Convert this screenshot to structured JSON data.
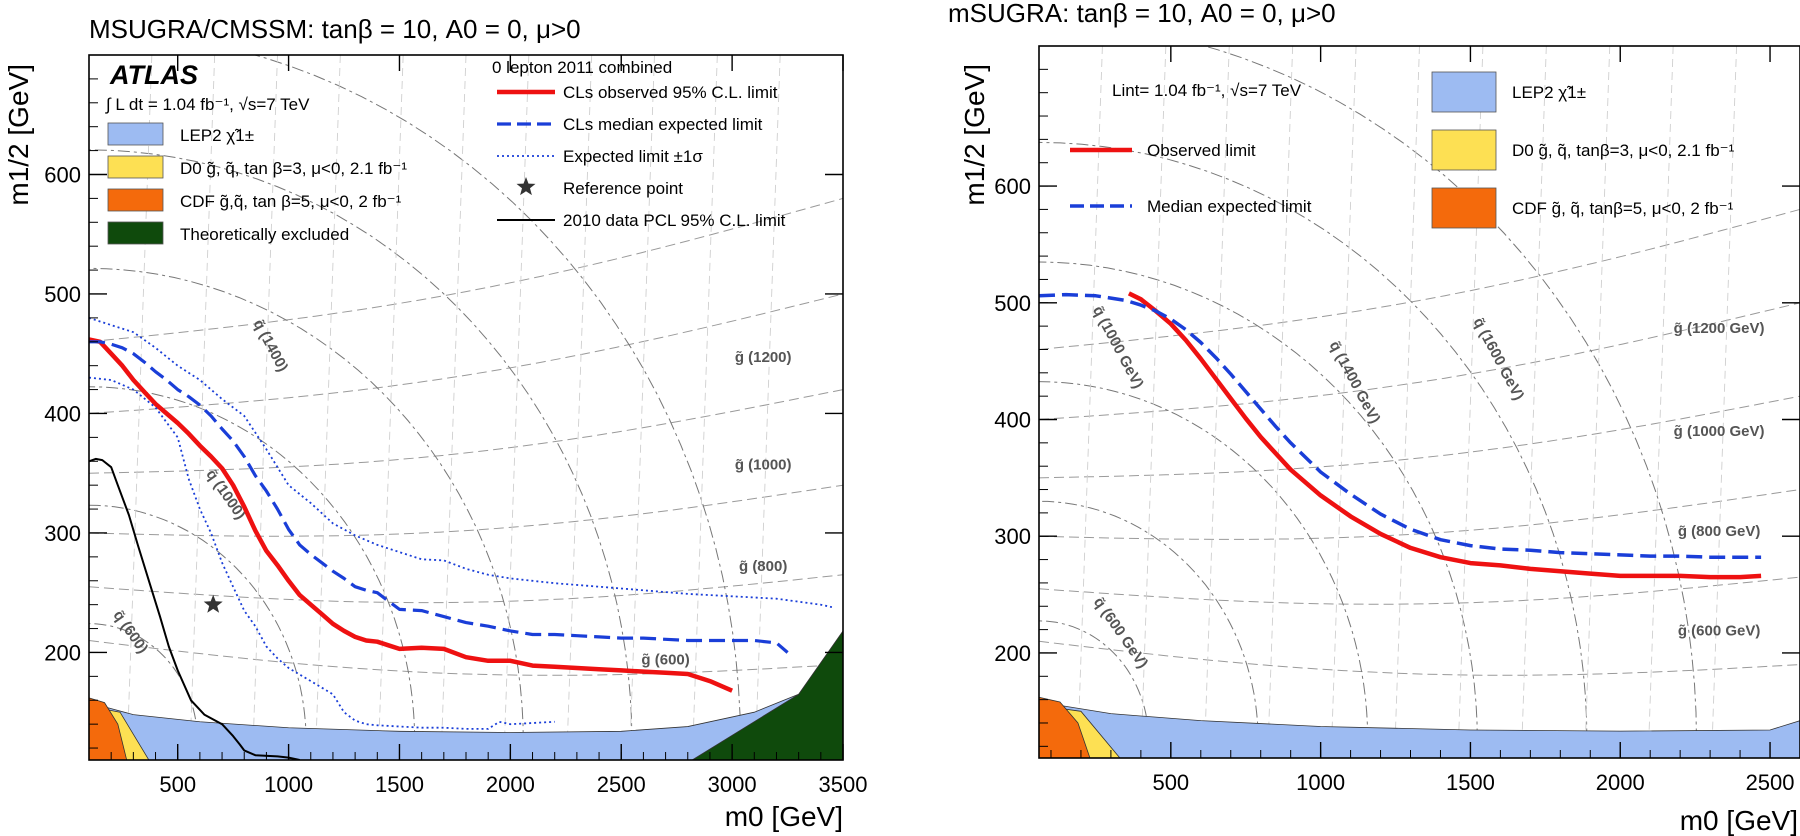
{
  "chart_data": [
    {
      "type": "line",
      "title": "MSUGRA/CMSSM: tanβ = 10, A0 = 0, μ>0",
      "xlabel": "m0 [GeV]",
      "ylabel": "m1/2 [GeV]",
      "xlim": [
        100,
        3500
      ],
      "ylim": [
        110,
        700
      ],
      "xticks": [
        500,
        1000,
        1500,
        2000,
        2500,
        3000,
        3500
      ],
      "yticks": [
        200,
        300,
        400,
        500,
        600
      ],
      "experiment": "ATLAS",
      "lumi_text": "∫ L dt = 1.04 fb⁻¹, √s=7 TeV",
      "legend_header": "0 lepton 2011 combined",
      "legend": [
        {
          "key": "obs",
          "label": "CLs observed 95% C.L. limit",
          "style": "solid",
          "color": "#ee1111"
        },
        {
          "key": "exp",
          "label": "CLs median expected limit",
          "style": "dashed",
          "color": "#1a3ed8"
        },
        {
          "key": "band",
          "label": "Expected limit ±1σ",
          "style": "dotted",
          "color": "#1a3ed8"
        },
        {
          "key": "ref",
          "label": "Reference point",
          "style": "star",
          "color": "#333333"
        },
        {
          "key": "pcl",
          "label": "2010 data PCL 95% C.L. limit",
          "style": "solid",
          "color": "#000000"
        }
      ],
      "regions": [
        {
          "label": "LEP2 χ̃1±",
          "color": "#9dbbf2"
        },
        {
          "label": "D0 g̃, q̃, tan β=3, μ<0, 2.1 fb⁻¹",
          "color": "#fde053"
        },
        {
          "label": "CDF g̃,q̃, tan β=5, μ<0, 2 fb⁻¹",
          "color": "#f46a0c"
        },
        {
          "label": "Theoretically excluded",
          "color": "#0f4a0c"
        }
      ],
      "iso_labels": [
        {
          "label": "g̃ (600)",
          "x": 2700,
          "y": 190
        },
        {
          "label": "g̃ (800)",
          "x": 3140,
          "y": 268
        },
        {
          "label": "g̃ (1000)",
          "x": 3140,
          "y": 353
        },
        {
          "label": "g̃ (1200)",
          "x": 3140,
          "y": 443
        },
        {
          "label": "q̃ (600)",
          "x": 270,
          "y": 215
        },
        {
          "label": "q̃ (1000)",
          "x": 700,
          "y": 330
        },
        {
          "label": "q̃ (1400)",
          "x": 900,
          "y": 455
        }
      ],
      "reference_point": {
        "x": 660,
        "y": 240
      },
      "series": [
        {
          "name": "CLs observed 95% C.L. limit",
          "x": [
            100,
            150,
            200,
            250,
            300,
            350,
            400,
            450,
            500,
            550,
            600,
            650,
            700,
            750,
            800,
            850,
            900,
            950,
            1000,
            1050,
            1100,
            1150,
            1200,
            1250,
            1300,
            1350,
            1400,
            1450,
            1500,
            1600,
            1700,
            1800,
            1900,
            2000,
            2100,
            2200,
            2300,
            2400,
            2500,
            2600,
            2700,
            2800,
            2900,
            3000
          ],
          "y": [
            462,
            460,
            450,
            440,
            428,
            418,
            408,
            400,
            392,
            383,
            373,
            364,
            354,
            340,
            322,
            302,
            285,
            273,
            260,
            248,
            240,
            232,
            224,
            218,
            213,
            210,
            209,
            206,
            203,
            204,
            203,
            196,
            193,
            193,
            189,
            188,
            187,
            186,
            185,
            184,
            183,
            182,
            176,
            168
          ]
        },
        {
          "name": "CLs median expected limit",
          "x": [
            100,
            150,
            200,
            250,
            300,
            350,
            400,
            450,
            500,
            550,
            600,
            650,
            700,
            750,
            800,
            850,
            900,
            950,
            1000,
            1050,
            1100,
            1150,
            1200,
            1250,
            1300,
            1350,
            1400,
            1450,
            1500,
            1600,
            1700,
            1800,
            1900,
            2000,
            2100,
            2200,
            2300,
            2400,
            2500,
            2600,
            2700,
            2800,
            2900,
            3000,
            3100,
            3200,
            3250
          ],
          "y": [
            460,
            460,
            458,
            455,
            450,
            443,
            435,
            428,
            420,
            414,
            407,
            398,
            387,
            377,
            364,
            348,
            335,
            320,
            303,
            290,
            282,
            275,
            268,
            262,
            255,
            252,
            250,
            243,
            236,
            235,
            230,
            225,
            222,
            218,
            215,
            215,
            214,
            213,
            212,
            212,
            211,
            210,
            210,
            210,
            210,
            208,
            200
          ]
        },
        {
          "name": "Expected limit +1σ",
          "x": [
            100,
            200,
            300,
            400,
            500,
            600,
            700,
            800,
            900,
            1000,
            1100,
            1200,
            1300,
            1400,
            1500,
            1600,
            1700,
            1800,
            1900,
            2000,
            2200,
            2400,
            2600,
            2800,
            3000,
            3200,
            3400,
            3450
          ],
          "y": [
            480,
            474,
            468,
            455,
            440,
            428,
            412,
            398,
            370,
            340,
            325,
            308,
            298,
            290,
            284,
            278,
            277,
            270,
            265,
            262,
            258,
            255,
            252,
            249,
            247,
            245,
            240,
            238
          ]
        },
        {
          "name": "Expected limit -1σ",
          "x": [
            100,
            200,
            300,
            400,
            500,
            550,
            600,
            650,
            700,
            750,
            800,
            850,
            900,
            950,
            1000,
            1100,
            1200,
            1250,
            1300,
            1350,
            1400,
            1500,
            1600,
            1700,
            1800,
            1900,
            1950,
            2000,
            2200
          ],
          "y": [
            430,
            428,
            420,
            405,
            380,
            345,
            320,
            300,
            275,
            255,
            235,
            222,
            205,
            195,
            187,
            176,
            165,
            150,
            143,
            140,
            139,
            138,
            137,
            137,
            136,
            136,
            142,
            140,
            142
          ]
        },
        {
          "name": "2010 data PCL 95% C.L. limit",
          "x": [
            100,
            130,
            160,
            200,
            230,
            280,
            320,
            370,
            420,
            460,
            500,
            560,
            620,
            700,
            750,
            780,
            800,
            850,
            950,
            1000,
            1050
          ],
          "y": [
            360,
            362,
            361,
            355,
            340,
            315,
            290,
            260,
            230,
            205,
            185,
            160,
            148,
            140,
            130,
            123,
            118,
            114,
            113,
            112,
            110
          ]
        }
      ]
    },
    {
      "type": "line",
      "title": "mSUGRA: tanβ = 10, A0 = 0, μ>0",
      "xlabel": "m0 [GeV]",
      "ylabel": "m1/2 [GeV]",
      "xlim": [
        60,
        2600
      ],
      "ylim": [
        110,
        720
      ],
      "xticks": [
        500,
        1000,
        1500,
        2000,
        2500
      ],
      "yticks": [
        200,
        300,
        400,
        500,
        600
      ],
      "lumi_text": "Lint= 1.04 fb⁻¹, √s=7 TeV",
      "legend": [
        {
          "key": "obs",
          "label": "Observed limit",
          "style": "solid",
          "color": "#ee1111"
        },
        {
          "key": "exp",
          "label": "Median expected limit",
          "style": "dashed",
          "color": "#1a3ed8"
        }
      ],
      "regions": [
        {
          "label": "LEP2 χ̃1±",
          "color": "#9dbbf2"
        },
        {
          "label": "D0 g̃, q̃, tanβ=3, μ<0, 2.1 fb⁻¹",
          "color": "#fde053"
        },
        {
          "label": "CDF g̃, q̃, tanβ=5, μ<0, 2 fb⁻¹",
          "color": "#f46a0c"
        }
      ],
      "iso_labels": [
        {
          "label": "g̃ (600 GeV)",
          "x": 2330,
          "y": 215
        },
        {
          "label": "g̃ (800 GeV)",
          "x": 2330,
          "y": 300
        },
        {
          "label": "g̃ (1000 GeV)",
          "x": 2330,
          "y": 386
        },
        {
          "label": "g̃ (1200 GeV)",
          "x": 2330,
          "y": 474
        },
        {
          "label": "q̃ (600 GeV)",
          "x": 320,
          "y": 215
        },
        {
          "label": "q̃ (1000 GeV)",
          "x": 310,
          "y": 460
        },
        {
          "label": "q̃ (1400 GeV)",
          "x": 1100,
          "y": 430
        },
        {
          "label": "q̃ (1600 GeV)",
          "x": 1580,
          "y": 450
        }
      ],
      "series": [
        {
          "name": "Observed limit",
          "x": [
            360,
            400,
            450,
            500,
            550,
            600,
            650,
            700,
            750,
            800,
            850,
            900,
            1000,
            1100,
            1200,
            1300,
            1400,
            1500,
            1600,
            1700,
            1800,
            1900,
            2000,
            2100,
            2200,
            2300,
            2400,
            2470
          ],
          "y": [
            508,
            503,
            493,
            482,
            468,
            452,
            435,
            418,
            401,
            385,
            371,
            357,
            335,
            317,
            302,
            290,
            282,
            277,
            275,
            272,
            270,
            268,
            266,
            266,
            266,
            265,
            265,
            266
          ]
        },
        {
          "name": "Median expected limit",
          "x": [
            60,
            150,
            250,
            350,
            400,
            450,
            500,
            550,
            600,
            650,
            700,
            750,
            800,
            850,
            900,
            1000,
            1100,
            1200,
            1300,
            1400,
            1500,
            1600,
            1700,
            1800,
            1900,
            2000,
            2100,
            2200,
            2300,
            2400,
            2470
          ],
          "y": [
            506,
            507,
            506,
            502,
            498,
            493,
            486,
            477,
            466,
            453,
            439,
            424,
            409,
            394,
            380,
            355,
            336,
            319,
            306,
            297,
            292,
            289,
            288,
            286,
            285,
            284,
            283,
            283,
            282,
            282,
            282
          ]
        }
      ]
    }
  ]
}
